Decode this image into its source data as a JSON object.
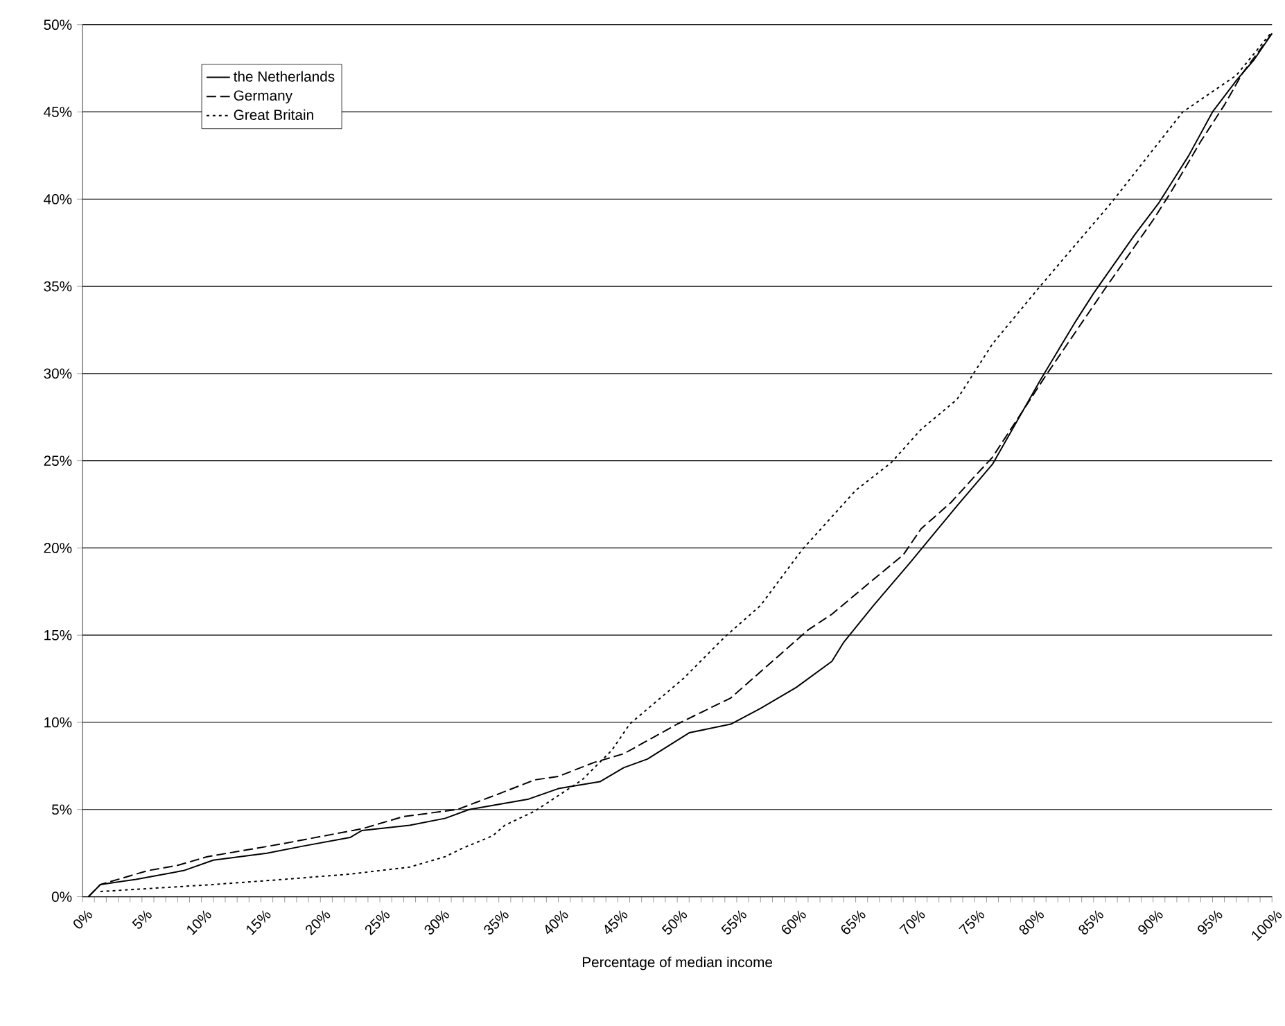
{
  "chart_data": {
    "type": "line",
    "xlabel": "Percentage of median income",
    "xlim": [
      0,
      100
    ],
    "ylim": [
      0,
      50
    ],
    "xticks": [
      {
        "value": 0,
        "label": "0%"
      },
      {
        "value": 5,
        "label": "5%"
      },
      {
        "value": 10,
        "label": "10%"
      },
      {
        "value": 15,
        "label": "15%"
      },
      {
        "value": 20,
        "label": "20%"
      },
      {
        "value": 25,
        "label": "25%"
      },
      {
        "value": 30,
        "label": "30%"
      },
      {
        "value": 35,
        "label": "35%"
      },
      {
        "value": 40,
        "label": "40%"
      },
      {
        "value": 45,
        "label": "45%"
      },
      {
        "value": 50,
        "label": "50%"
      },
      {
        "value": 55,
        "label": "55%"
      },
      {
        "value": 60,
        "label": "60%"
      },
      {
        "value": 65,
        "label": "65%"
      },
      {
        "value": 70,
        "label": "70%"
      },
      {
        "value": 75,
        "label": "75%"
      },
      {
        "value": 80,
        "label": "80%"
      },
      {
        "value": 85,
        "label": "85%"
      },
      {
        "value": 90,
        "label": "90%"
      },
      {
        "value": 95,
        "label": "95%"
      },
      {
        "value": 100,
        "label": "100%"
      }
    ],
    "yticks": [
      {
        "value": 0,
        "label": "0%"
      },
      {
        "value": 5,
        "label": "5%"
      },
      {
        "value": 10,
        "label": "10%"
      },
      {
        "value": 15,
        "label": "15%"
      },
      {
        "value": 20,
        "label": "20%"
      },
      {
        "value": 25,
        "label": "25%"
      },
      {
        "value": 30,
        "label": "30%"
      },
      {
        "value": 35,
        "label": "35%"
      },
      {
        "value": 40,
        "label": "40%"
      },
      {
        "value": 45,
        "label": "45%"
      },
      {
        "value": 50,
        "label": "50%"
      }
    ],
    "grid": "y",
    "legend": "top left",
    "marker": "none",
    "series": [
      {
        "name": "the Netherlands",
        "color": "#000000",
        "line_style": "solid",
        "x": [
          0.5,
          1.5,
          4.5,
          8.5,
          11,
          15.5,
          18.5,
          22.5,
          23.5,
          27.5,
          30.5,
          32.5,
          37.5,
          40,
          43.5,
          45.5,
          47.5,
          51,
          54.5,
          57,
          60,
          63,
          64,
          66.5,
          69.5,
          73.5,
          76.5,
          80.5,
          83.5,
          85,
          88.5,
          90.5,
          93,
          95,
          97,
          98.5,
          100
        ],
        "values": [
          0,
          0.7,
          1.0,
          1.5,
          2.1,
          2.5,
          2.9,
          3.4,
          3.8,
          4.1,
          4.5,
          5.0,
          5.6,
          6.2,
          6.6,
          7.4,
          7.9,
          9.4,
          9.9,
          10.8,
          12.0,
          13.5,
          14.6,
          16.7,
          19.1,
          22.4,
          24.8,
          29.6,
          33.0,
          34.6,
          38.0,
          39.8,
          42.5,
          45.0,
          46.8,
          48.0,
          49.5
        ]
      },
      {
        "name": "Germany",
        "color": "#000000",
        "line_style": "dashed",
        "x": [
          0.5,
          1.5,
          5.5,
          8,
          10.5,
          16.5,
          23.5,
          27,
          31.5,
          35,
          38,
          40,
          43,
          45.5,
          50,
          54.5,
          58.5,
          61,
          63,
          66.5,
          69,
          70.5,
          73,
          75,
          76.5,
          81,
          86,
          90,
          91.5,
          94,
          96,
          97.5,
          100
        ],
        "values": [
          0,
          0.7,
          1.5,
          1.8,
          2.3,
          3.0,
          3.9,
          4.6,
          5.0,
          5.9,
          6.7,
          6.9,
          7.7,
          8.2,
          9.9,
          11.4,
          13.8,
          15.3,
          16.2,
          18.2,
          19.6,
          21.1,
          22.6,
          24.1,
          25.2,
          29.9,
          34.9,
          38.8,
          40.4,
          43.3,
          45.4,
          47.2,
          49.5
        ]
      },
      {
        "name": "Great Britain",
        "color": "#000000",
        "line_style": "dotted",
        "x": [
          1.5,
          11,
          17,
          22.5,
          27.5,
          30.5,
          32,
          34.5,
          35.5,
          38,
          42,
          44.5,
          46,
          50.5,
          54,
          57,
          60.5,
          65,
          68,
          70.5,
          73.5,
          76.5,
          80.5,
          86.5,
          92.5,
          97,
          100
        ],
        "values": [
          0.3,
          0.7,
          1.0,
          1.3,
          1.7,
          2.3,
          2.8,
          3.5,
          4.1,
          4.9,
          6.7,
          8.4,
          9.9,
          12.5,
          14.9,
          16.7,
          19.9,
          23.3,
          24.9,
          26.8,
          28.5,
          31.7,
          35.0,
          39.8,
          45.0,
          47.1,
          49.6
        ]
      }
    ]
  }
}
